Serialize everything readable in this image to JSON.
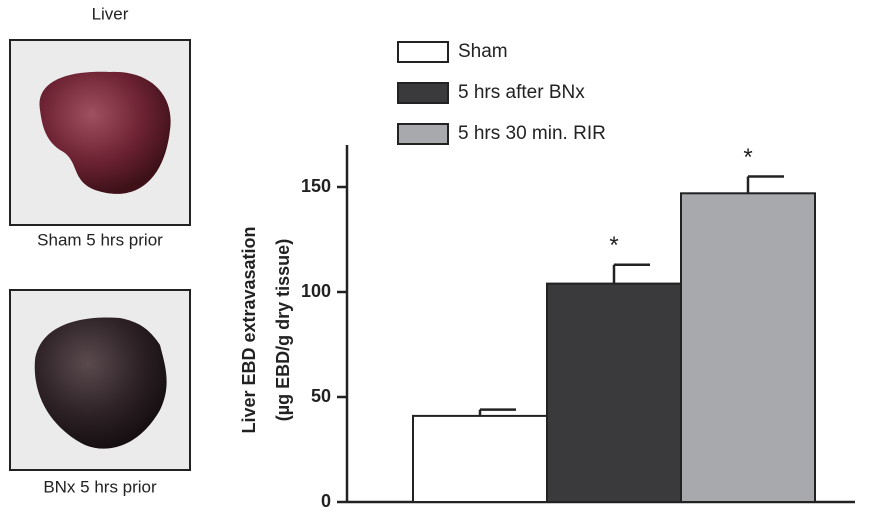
{
  "panel": {
    "title": "Liver",
    "captions": [
      "Sham 5 hrs prior",
      "BNx 5 hrs prior"
    ]
  },
  "chart_data": {
    "type": "bar",
    "y_label": [
      "Liver EBD extravasation",
      "(µg EBD/g dry tissue)"
    ],
    "categories": [
      null
    ],
    "series": [
      {
        "name": "Sham",
        "color": "#ffffff",
        "values": [
          41
        ],
        "errors": [
          3
        ],
        "significance": [
          null
        ]
      },
      {
        "name": "5 hrs after BNx",
        "color": "#3a3a3c",
        "values": [
          104
        ],
        "errors": [
          9
        ],
        "significance": [
          "*"
        ]
      },
      {
        "name": "5 hrs 30 min. RIR",
        "color": "#a7a9ac",
        "values": [
          147
        ],
        "errors": [
          8
        ],
        "significance": [
          "*"
        ]
      }
    ],
    "ylim": [
      0,
      170
    ],
    "yticks": [
      0,
      50,
      100,
      150
    ],
    "grid": false
  }
}
